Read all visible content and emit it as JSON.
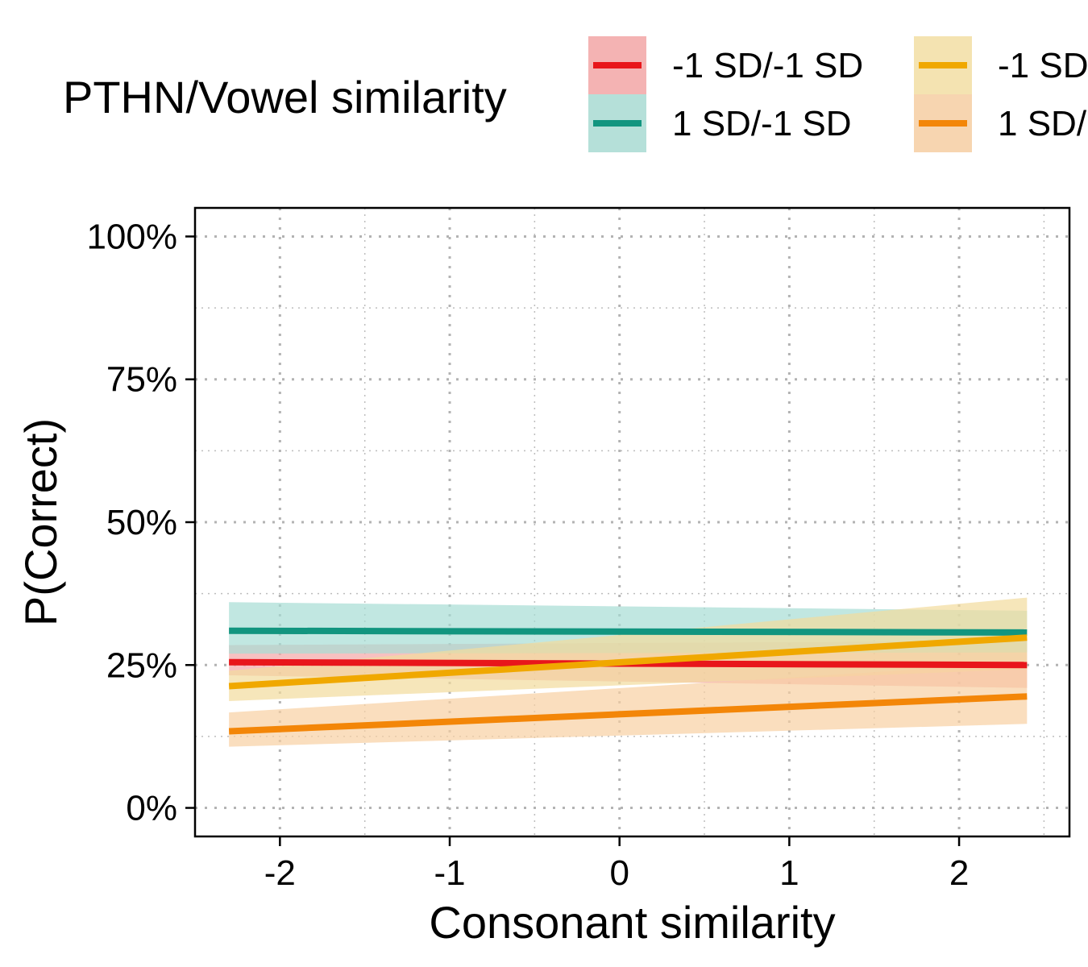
{
  "chart_data": {
    "type": "line",
    "legend_title": "PTHN/Vowel similarity",
    "legend_position": "top",
    "xlabel": "Consonant similarity",
    "ylabel": "P(Correct)",
    "xlim": [
      -2.5,
      2.65
    ],
    "ylim": [
      -0.05,
      1.05
    ],
    "x_ticks": [
      -2,
      -1,
      0,
      1,
      2
    ],
    "x_tick_labels": [
      "-2",
      "-1",
      "0",
      "1",
      "2"
    ],
    "y_ticks": [
      0,
      0.25,
      0.5,
      0.75,
      1.0
    ],
    "y_tick_labels": [
      "0%",
      "25%",
      "50%",
      "75%",
      "100%"
    ],
    "grid": "dotted major and minor",
    "series": [
      {
        "name": "-1 SD/-1 SD",
        "color": "#e8161b",
        "band_color": "#f4a6a6",
        "x": [
          -2.3,
          2.4
        ],
        "y": [
          0.255,
          0.25
        ],
        "lower": [
          0.232,
          0.21
        ],
        "upper": [
          0.285,
          0.292
        ]
      },
      {
        "name": "1 SD/-1 SD",
        "color": "#12957f",
        "band_color": "#a7ddd4",
        "x": [
          -2.3,
          2.4
        ],
        "y": [
          0.31,
          0.307
        ],
        "lower": [
          0.27,
          0.272
        ],
        "upper": [
          0.36,
          0.345
        ]
      },
      {
        "name": "-1 SD",
        "color": "#f0a800",
        "band_color": "#f2dc9c",
        "x": [
          -2.3,
          2.4
        ],
        "y": [
          0.213,
          0.298
        ],
        "lower": [
          0.187,
          0.243
        ],
        "upper": [
          0.24,
          0.368
        ]
      },
      {
        "name": "1 SD/",
        "color": "#f38608",
        "band_color": "#f8d0a3",
        "x": [
          -2.3,
          2.4
        ],
        "y": [
          0.134,
          0.195
        ],
        "lower": [
          0.107,
          0.147
        ],
        "upper": [
          0.167,
          0.254
        ]
      }
    ]
  }
}
